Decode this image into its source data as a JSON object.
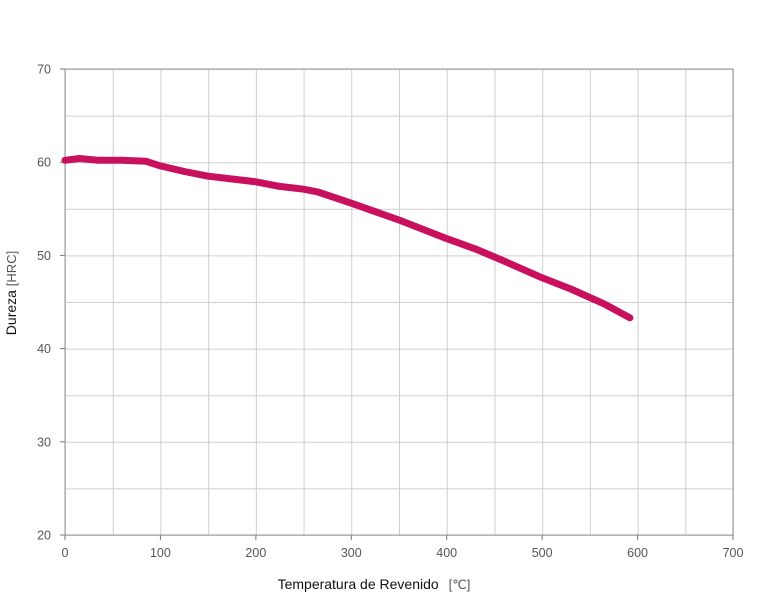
{
  "chart_data": {
    "type": "line",
    "title": "",
    "xlabel": "Temperatura de Revenido",
    "xunit": "[℃]",
    "ylabel": "Dureza",
    "yunit": "[HRC]",
    "xlim": [
      0,
      700
    ],
    "ylim": [
      20,
      70
    ],
    "xticks": [
      0,
      100,
      200,
      300,
      400,
      500,
      600,
      700
    ],
    "yticks": [
      20,
      30,
      40,
      50,
      60,
      70
    ],
    "x_minor_grid_step": 50,
    "y_minor_grid_step": 5,
    "grid": true,
    "legend": "none",
    "series": [
      {
        "color": "#c8105e",
        "x": [
          0,
          15,
          35,
          60,
          85,
          100,
          125,
          150,
          175,
          200,
          225,
          250,
          265,
          300,
          350,
          400,
          430,
          460,
          500,
          530,
          565,
          592
        ],
        "y": [
          60.2,
          60.4,
          60.2,
          60.2,
          60.1,
          59.6,
          59.0,
          58.5,
          58.2,
          57.9,
          57.4,
          57.1,
          56.8,
          55.6,
          53.8,
          51.8,
          50.7,
          49.4,
          47.6,
          46.4,
          44.8,
          43.3
        ]
      }
    ]
  }
}
